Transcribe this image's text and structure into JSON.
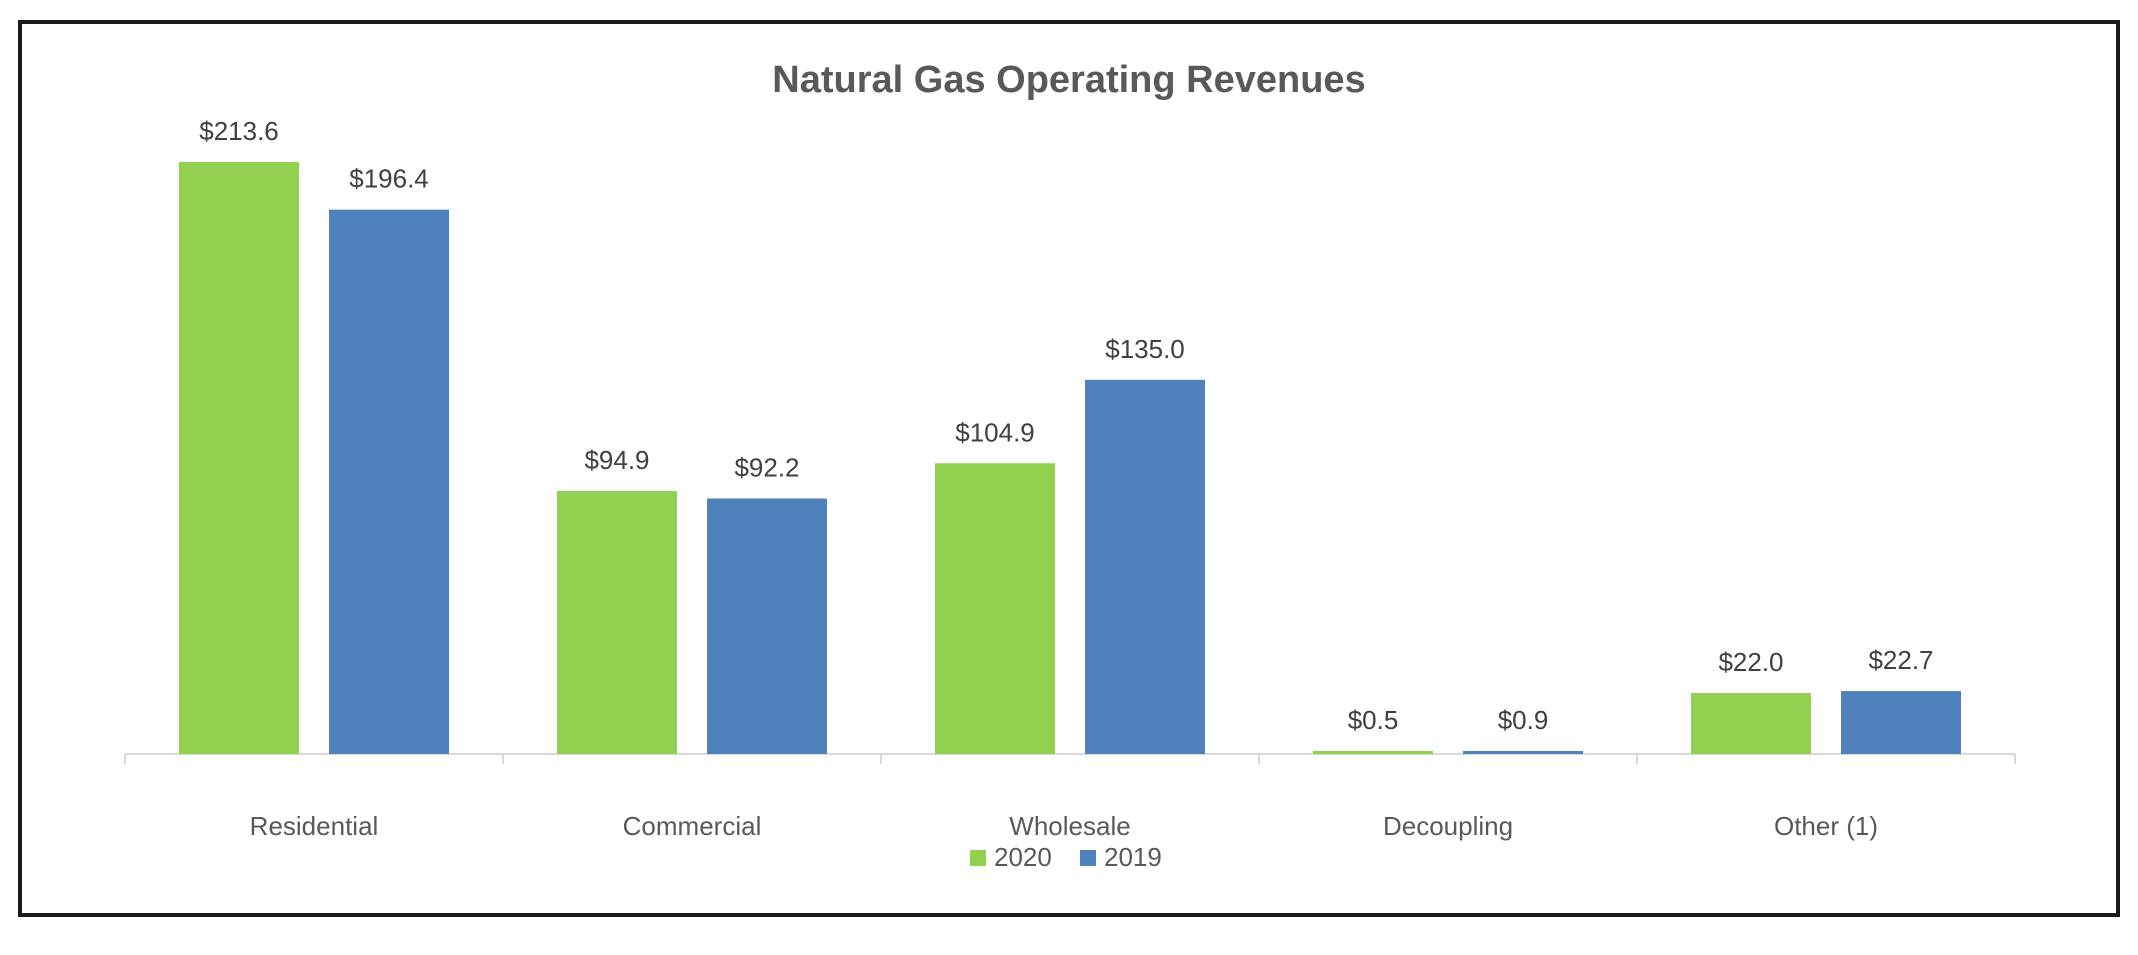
{
  "chart_data": {
    "type": "bar",
    "title": "Natural Gas Operating Revenues",
    "xlabel": "",
    "ylabel": "",
    "ylim": [
      0,
      230
    ],
    "grid": false,
    "legend_position": "bottom",
    "categories": [
      "Residential",
      "Commercial",
      "Wholesale",
      "Decoupling",
      "Other (1)"
    ],
    "series": [
      {
        "name": "2020",
        "color": "#92d050",
        "values": [
          213.6,
          94.9,
          104.9,
          0.5,
          22.0
        ],
        "labels": [
          "$213.6",
          "$94.9",
          "$104.9",
          "$0.5",
          "$22.0"
        ]
      },
      {
        "name": "2019",
        "color": "#4f81bd",
        "values": [
          196.4,
          92.2,
          135.0,
          0.9,
          22.7
        ],
        "labels": [
          "$196.4",
          "$92.2",
          "$135.0",
          "$0.9",
          "$22.7"
        ]
      }
    ]
  }
}
